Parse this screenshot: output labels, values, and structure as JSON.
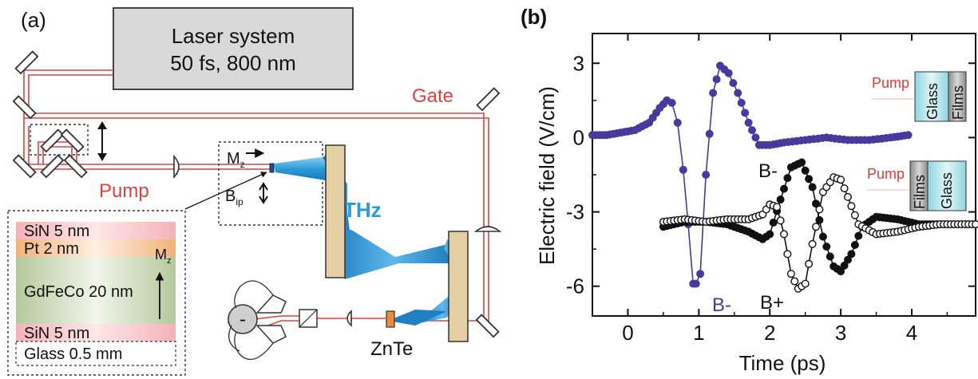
{
  "panel_a": {
    "label": "(a)",
    "laser": {
      "line1": "Laser system",
      "line2": "50 fs, 800 nm"
    },
    "gate_label": "Gate",
    "pump_label": "Pump",
    "thz_label": "THz",
    "znte_label": "ZnTe",
    "mz_main": "M",
    "mz_sub": "z",
    "bip_main": "B",
    "bip_sub": "ip",
    "detector_symbol": "-",
    "stack": {
      "layers": [
        "SiN 5 nm",
        "Pt 2 nm",
        "GdFeCo 20 nm",
        "SiN 5 nm",
        "Glass 0.5 mm"
      ],
      "mz_main": "M",
      "mz_sub": "z"
    },
    "colors": {
      "beam": "#e0413f",
      "thz": "#2b9ad8",
      "mirror_block": "#e3cfa3"
    }
  },
  "panel_b": {
    "label": "(b)",
    "pump_text": "Pump",
    "inset_top": {
      "pump": "Pump",
      "left": "Glass",
      "right": "Films"
    },
    "inset_bottom": {
      "pump": "Pump",
      "left": "Films",
      "right": "Glass"
    },
    "annotations": {
      "bminus_blue": "B-",
      "bminus_black": "B-",
      "bplus": "B+"
    }
  },
  "chart_data": {
    "type": "scatter",
    "xlabel": "Time (ps)",
    "ylabel": "Electric field (V/cm)",
    "xlim": [
      -0.5,
      4.9
    ],
    "ylim": [
      -7.2,
      4.2
    ],
    "xticks": [
      0,
      1,
      2,
      3,
      4
    ],
    "yticks": [
      3,
      0,
      -3,
      -6
    ],
    "tick_labels_x": [
      "0",
      "1",
      "2",
      "3",
      "4"
    ],
    "tick_labels_y": [
      "3",
      "0",
      "-3",
      "-6"
    ],
    "colors": {
      "blue": "#473a9c",
      "black": "#111111",
      "red": "#e53935"
    },
    "series": [
      {
        "name": "B-",
        "style": "filled-blue",
        "x": [
          -0.5,
          -0.3,
          -0.1,
          0.1,
          0.3,
          0.45,
          0.55,
          0.62,
          0.7,
          0.78,
          0.85,
          0.92,
          0.96,
          1.02,
          1.1,
          1.2,
          1.3,
          1.42,
          1.55,
          1.7,
          1.85,
          2.0,
          2.2,
          2.5,
          2.8,
          3.1,
          3.4,
          3.7,
          3.95
        ],
        "y": [
          0.1,
          0.1,
          0.2,
          0.3,
          0.6,
          1.2,
          1.5,
          1.4,
          0.6,
          -1.3,
          -3.5,
          -5.9,
          -5.9,
          -5.5,
          -1.5,
          1.8,
          2.9,
          2.6,
          1.8,
          0.6,
          -0.3,
          -0.3,
          -0.2,
          -0.1,
          0.0,
          -0.1,
          -0.1,
          0.0,
          0.1
        ]
      },
      {
        "name": "B-",
        "style": "filled-black",
        "x": [
          0.5,
          0.8,
          1.1,
          1.4,
          1.7,
          1.9,
          2.0,
          2.15,
          2.3,
          2.45,
          2.6,
          2.75,
          2.9,
          3.0,
          3.15,
          3.3,
          3.5,
          3.8,
          4.1,
          4.4,
          4.9
        ],
        "y": [
          -3.6,
          -3.4,
          -3.4,
          -3.5,
          -3.8,
          -4.1,
          -3.9,
          -2.5,
          -1.2,
          -1.0,
          -2.0,
          -4.0,
          -5.2,
          -5.4,
          -4.7,
          -3.6,
          -3.2,
          -3.3,
          -3.5,
          -3.5,
          -3.5
        ]
      },
      {
        "name": "B+",
        "style": "open-black",
        "x": [
          0.5,
          0.8,
          1.1,
          1.4,
          1.7,
          1.9,
          2.0,
          2.1,
          2.2,
          2.3,
          2.4,
          2.5,
          2.6,
          2.75,
          2.9,
          3.0,
          3.1,
          3.25,
          3.5,
          3.8,
          4.1,
          4.4,
          4.9
        ],
        "y": [
          -3.4,
          -3.3,
          -3.4,
          -3.3,
          -3.3,
          -3.1,
          -2.7,
          -2.8,
          -3.9,
          -5.5,
          -6.1,
          -5.9,
          -4.3,
          -2.2,
          -1.6,
          -1.7,
          -2.4,
          -3.5,
          -3.9,
          -3.8,
          -3.6,
          -3.5,
          -3.5
        ]
      }
    ]
  }
}
